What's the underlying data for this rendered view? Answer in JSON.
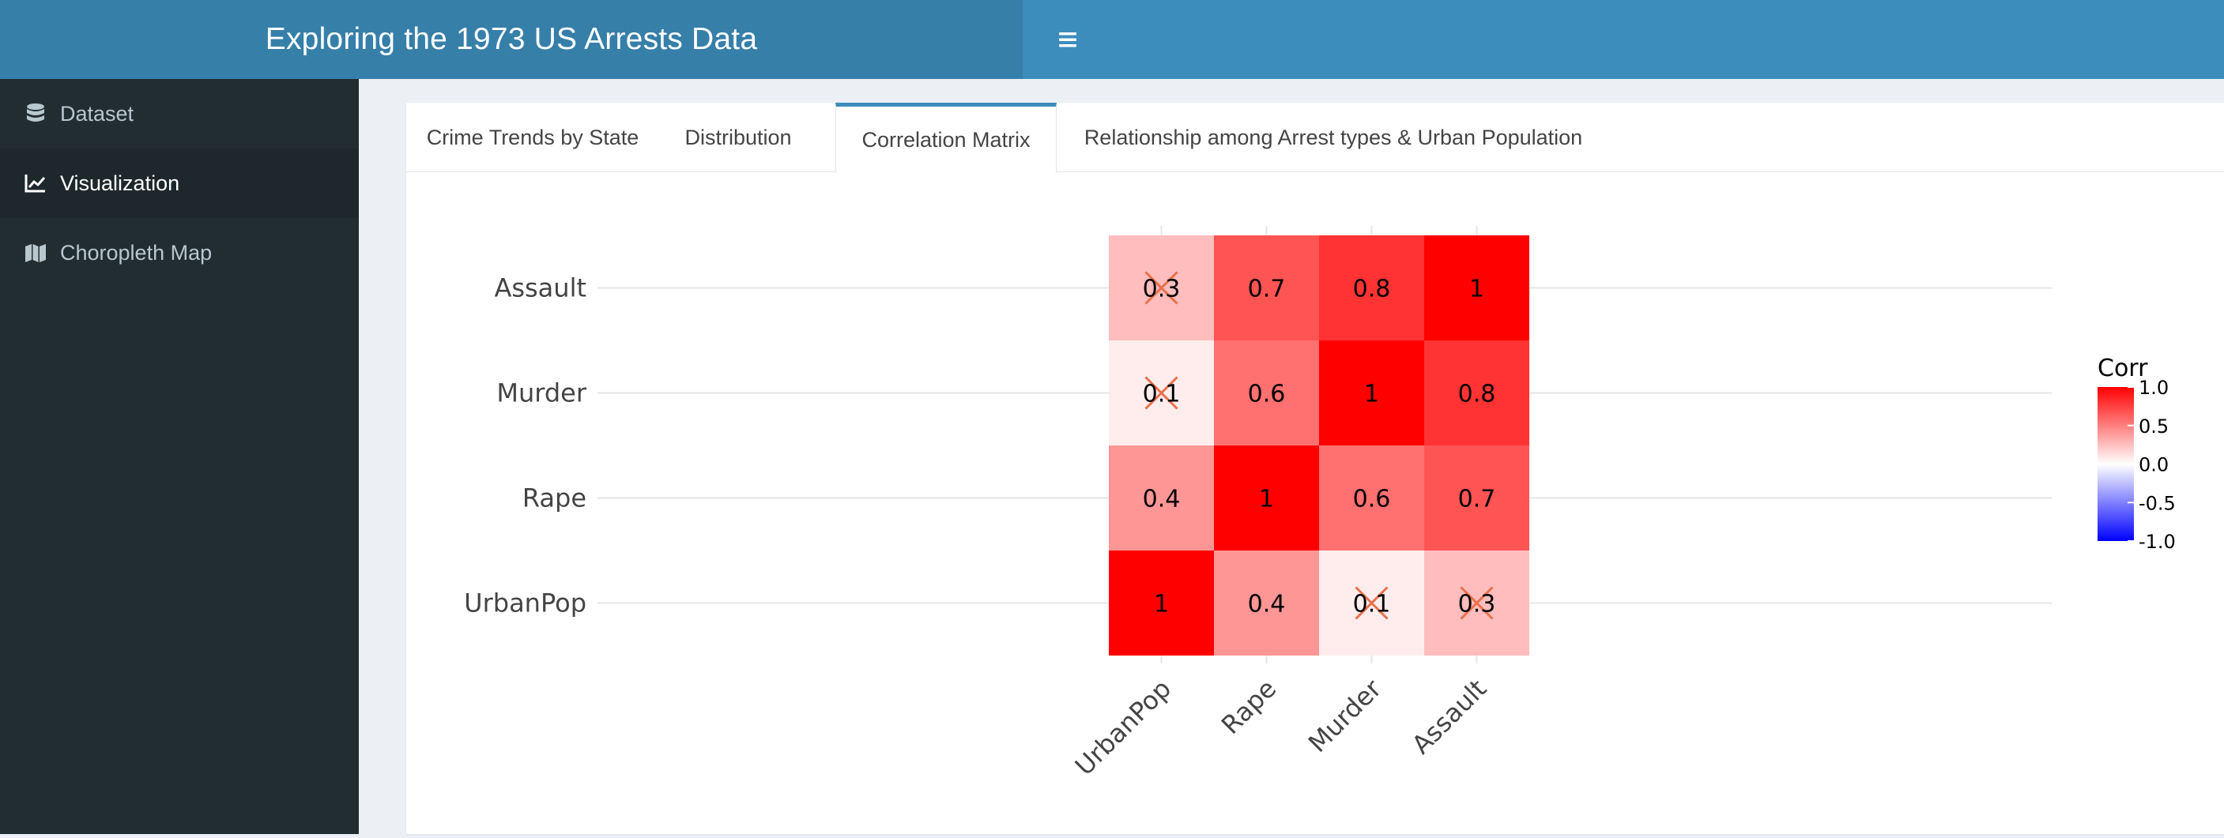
{
  "header": {
    "title": "Exploring the 1973 US Arrests Data",
    "menu_icon": "hamburger-menu-icon"
  },
  "sidebar": {
    "items": [
      {
        "label": "Dataset",
        "icon": "database-icon",
        "active": false
      },
      {
        "label": "Visualization",
        "icon": "line-chart-icon",
        "active": true
      },
      {
        "label": "Choropleth Map",
        "icon": "map-icon",
        "active": false
      }
    ]
  },
  "tabs": [
    {
      "label": "Crime Trends by State",
      "active": false
    },
    {
      "label": "Distribution",
      "active": false
    },
    {
      "label": "Correlation Matrix",
      "active": true
    },
    {
      "label": "Relationship among Arrest types & Urban Population",
      "active": false
    }
  ],
  "colors": {
    "header_brand": "#367fa9",
    "header_bar": "#3c8dbc",
    "sidebar_bg": "#222d32",
    "sidebar_active": "#1e282c",
    "corr_high": "#ff0000",
    "corr_mid": "#ffffff",
    "corr_low": "#0000ff",
    "cross_mark": "#e8704a"
  },
  "chart_data": {
    "type": "heatmap",
    "title": "",
    "xlabel": "",
    "ylabel": "",
    "x_categories": [
      "UrbanPop",
      "Rape",
      "Murder",
      "Assault"
    ],
    "y_categories": [
      "Assault",
      "Murder",
      "Rape",
      "UrbanPop"
    ],
    "cells": [
      {
        "x": "UrbanPop",
        "y": "Assault",
        "value": 0.26,
        "label": "0.3",
        "insignificant": true
      },
      {
        "x": "Rape",
        "y": "Assault",
        "value": 0.67,
        "label": "0.7",
        "insignificant": false
      },
      {
        "x": "Murder",
        "y": "Assault",
        "value": 0.8,
        "label": "0.8",
        "insignificant": false
      },
      {
        "x": "Assault",
        "y": "Assault",
        "value": 1.0,
        "label": "1",
        "insignificant": false
      },
      {
        "x": "UrbanPop",
        "y": "Murder",
        "value": 0.07,
        "label": "0.1",
        "insignificant": true
      },
      {
        "x": "Rape",
        "y": "Murder",
        "value": 0.56,
        "label": "0.6",
        "insignificant": false
      },
      {
        "x": "Murder",
        "y": "Murder",
        "value": 1.0,
        "label": "1",
        "insignificant": false
      },
      {
        "x": "Assault",
        "y": "Murder",
        "value": 0.8,
        "label": "0.8",
        "insignificant": false
      },
      {
        "x": "UrbanPop",
        "y": "Rape",
        "value": 0.41,
        "label": "0.4",
        "insignificant": false
      },
      {
        "x": "Rape",
        "y": "Rape",
        "value": 1.0,
        "label": "1",
        "insignificant": false
      },
      {
        "x": "Murder",
        "y": "Rape",
        "value": 0.56,
        "label": "0.6",
        "insignificant": false
      },
      {
        "x": "Assault",
        "y": "Rape",
        "value": 0.67,
        "label": "0.7",
        "insignificant": false
      },
      {
        "x": "UrbanPop",
        "y": "UrbanPop",
        "value": 1.0,
        "label": "1",
        "insignificant": false
      },
      {
        "x": "Rape",
        "y": "UrbanPop",
        "value": 0.41,
        "label": "0.4",
        "insignificant": false
      },
      {
        "x": "Murder",
        "y": "UrbanPop",
        "value": 0.07,
        "label": "0.1",
        "insignificant": true
      },
      {
        "x": "Assault",
        "y": "UrbanPop",
        "value": 0.26,
        "label": "0.3",
        "insignificant": true
      }
    ],
    "legend": {
      "title": "Corr",
      "placement": "right",
      "range": [
        -1,
        1
      ],
      "ticks": [
        "1.0",
        "0.5",
        "0.0",
        "-0.5",
        "-1.0"
      ]
    },
    "grid": true
  }
}
